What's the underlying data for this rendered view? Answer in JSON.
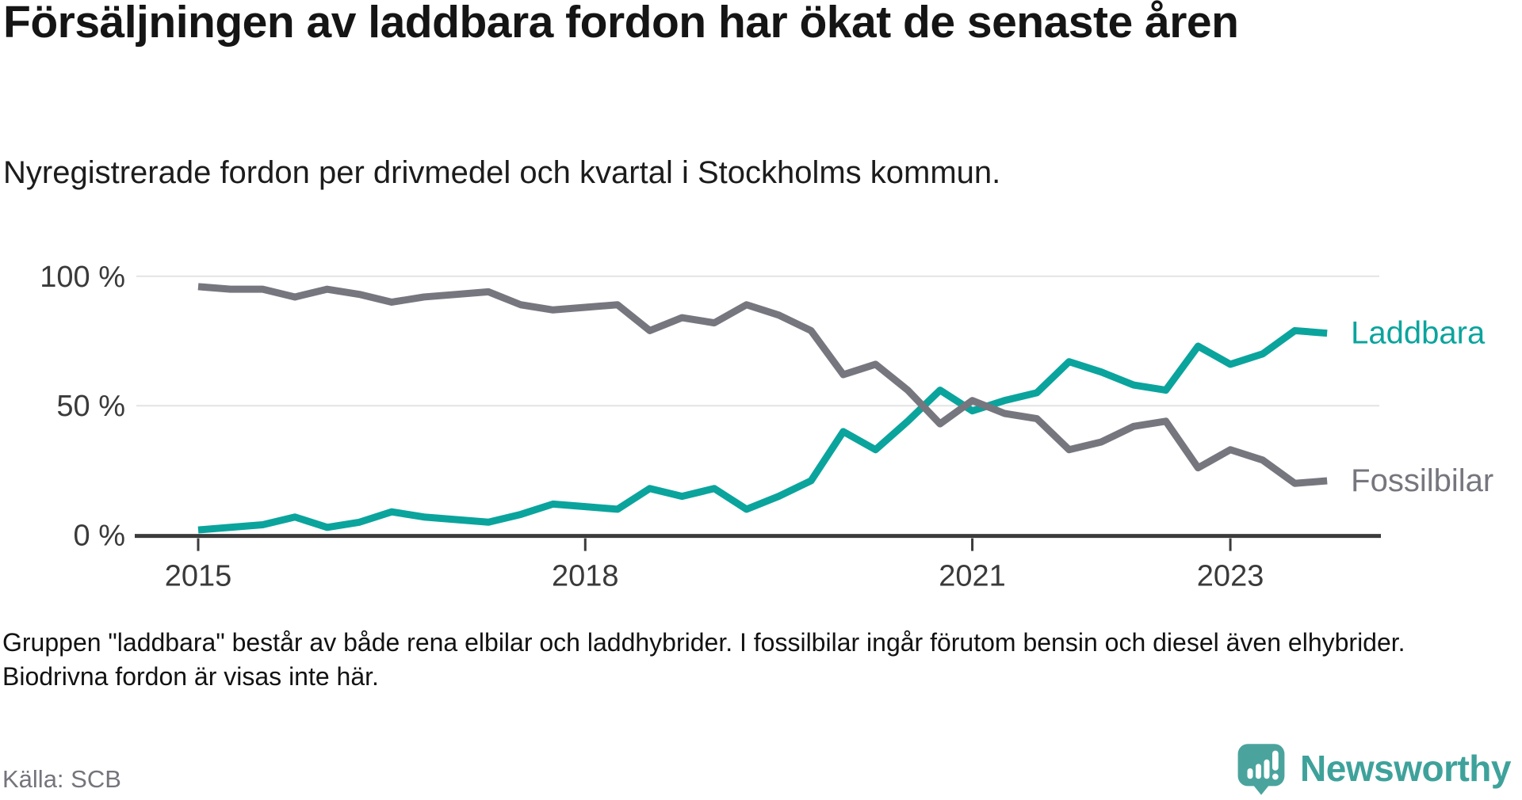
{
  "header": {
    "title": "Försäljningen av laddbara fordon har ökat de senaste åren",
    "subtitle": "Nyregistrerade fordon per drivmedel och kvartal i Stockholms kommun."
  },
  "chart_data": {
    "type": "line",
    "unit": "%",
    "x": [
      "2015 Q1",
      "2015 Q2",
      "2015 Q3",
      "2015 Q4",
      "2016 Q1",
      "2016 Q2",
      "2016 Q3",
      "2016 Q4",
      "2017 Q1",
      "2017 Q2",
      "2017 Q3",
      "2017 Q4",
      "2018 Q1",
      "2018 Q2",
      "2018 Q3",
      "2018 Q4",
      "2019 Q1",
      "2019 Q2",
      "2019 Q3",
      "2019 Q4",
      "2020 Q1",
      "2020 Q2",
      "2020 Q3",
      "2020 Q4",
      "2021 Q1",
      "2021 Q2",
      "2021 Q3",
      "2021 Q4",
      "2022 Q1",
      "2022 Q2",
      "2022 Q3",
      "2022 Q4",
      "2023 Q1",
      "2023 Q2",
      "2023 Q3",
      "2023 Q4"
    ],
    "series": [
      {
        "name": "Laddbara",
        "color": "#0aa49d",
        "values": [
          2,
          3,
          4,
          7,
          3,
          5,
          9,
          7,
          6,
          5,
          8,
          12,
          11,
          10,
          18,
          15,
          18,
          10,
          15,
          21,
          40,
          33,
          44,
          56,
          48,
          52,
          55,
          67,
          63,
          58,
          56,
          73,
          66,
          70,
          79,
          78
        ]
      },
      {
        "name": "Fossilbilar",
        "color": "#76767e",
        "values": [
          96,
          95,
          95,
          92,
          95,
          93,
          90,
          92,
          93,
          94,
          89,
          87,
          88,
          89,
          79,
          84,
          82,
          89,
          85,
          79,
          62,
          66,
          56,
          43,
          52,
          47,
          45,
          33,
          36,
          42,
          44,
          26,
          33,
          29,
          20,
          21
        ]
      }
    ],
    "x_ticks": [
      {
        "label": "2015",
        "index": 0
      },
      {
        "label": "2018",
        "index": 12
      },
      {
        "label": "2021",
        "index": 24
      },
      {
        "label": "2023",
        "index": 32
      }
    ],
    "y_ticks": [
      {
        "label": "100 %",
        "value": 100
      },
      {
        "label": "50 %",
        "value": 50
      },
      {
        "label": "0 %",
        "value": 0
      }
    ],
    "ylim": [
      0,
      100
    ],
    "grid": "horizontal",
    "legend_position": "line-end-labels",
    "axis_text_color": "#3a3a3a",
    "grid_color": "#e4e4e4",
    "axis_line_color": "#3b3b3b"
  },
  "footnote": "Gruppen \"laddbara\" består av både rena elbilar och laddhybrider. I fossilbilar ingår förutom bensin och diesel även elhybrider. Biodrivna fordon är visas inte här.",
  "source": "Källa: SCB",
  "branding": {
    "logo_text": "Newsworthy",
    "logo_color": "#3ea29b",
    "icon_color": "#4aa49d",
    "icon": "newsworthy-speech-bubble-chart-icon"
  }
}
